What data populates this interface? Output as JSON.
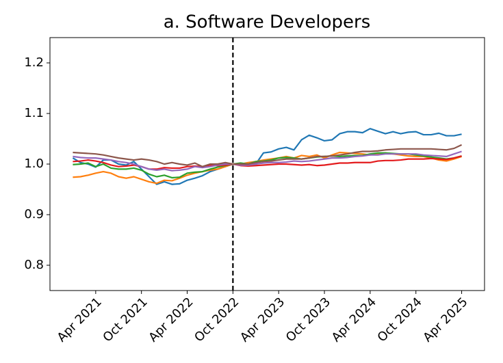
{
  "chart_data": {
    "type": "line",
    "title": "a. Software Developers",
    "x": [
      "2021-01",
      "2021-02",
      "2021-03",
      "2021-04",
      "2021-05",
      "2021-06",
      "2021-07",
      "2021-08",
      "2021-09",
      "2021-10",
      "2021-11",
      "2021-12",
      "2022-01",
      "2022-02",
      "2022-03",
      "2022-04",
      "2022-05",
      "2022-06",
      "2022-07",
      "2022-08",
      "2022-09",
      "2022-10",
      "2022-11",
      "2022-12",
      "2023-01",
      "2023-02",
      "2023-03",
      "2023-04",
      "2023-05",
      "2023-06",
      "2023-07",
      "2023-08",
      "2023-09",
      "2023-10",
      "2023-11",
      "2023-12",
      "2024-01",
      "2024-02",
      "2024-03",
      "2024-04",
      "2024-05",
      "2024-06",
      "2024-07",
      "2024-08",
      "2024-09",
      "2024-10",
      "2024-11",
      "2024-12",
      "2025-01",
      "2025-02",
      "2025-03",
      "2025-04"
    ],
    "series": [
      {
        "color": "#1f77b4",
        "values": [
          1.012,
          1.003,
          1.0,
          0.994,
          1.008,
          1.008,
          1.0,
          0.998,
          1.005,
          0.99,
          0.975,
          0.96,
          0.965,
          0.96,
          0.961,
          0.968,
          0.972,
          0.977,
          0.985,
          0.99,
          0.995,
          1.0,
          1.0,
          0.998,
          1.0,
          1.022,
          1.024,
          1.03,
          1.033,
          1.028,
          1.048,
          1.057,
          1.052,
          1.046,
          1.048,
          1.06,
          1.064,
          1.064,
          1.062,
          1.07,
          1.065,
          1.06,
          1.064,
          1.06,
          1.063,
          1.064,
          1.058,
          1.058,
          1.061,
          1.056,
          1.056,
          1.059
        ]
      },
      {
        "color": "#ff7f0e",
        "values": [
          0.974,
          0.975,
          0.978,
          0.982,
          0.985,
          0.982,
          0.975,
          0.972,
          0.975,
          0.97,
          0.965,
          0.962,
          0.968,
          0.967,
          0.972,
          0.978,
          0.982,
          0.985,
          0.988,
          0.99,
          0.995,
          1.0,
          1.0,
          1.003,
          1.005,
          1.008,
          1.01,
          1.012,
          1.015,
          1.012,
          1.017,
          1.015,
          1.018,
          1.012,
          1.018,
          1.023,
          1.022,
          1.021,
          1.02,
          1.018,
          1.02,
          1.022,
          1.02,
          1.018,
          1.016,
          1.015,
          1.015,
          1.012,
          1.008,
          1.006,
          1.01,
          1.015
        ]
      },
      {
        "color": "#2ca02c",
        "values": [
          0.999,
          1.0,
          1.002,
          0.995,
          1.0,
          0.992,
          0.99,
          0.99,
          0.992,
          0.988,
          0.98,
          0.975,
          0.978,
          0.973,
          0.974,
          0.982,
          0.984,
          0.985,
          0.99,
          0.994,
          0.997,
          1.0,
          1.002,
          1.0,
          1.005,
          1.006,
          1.008,
          1.012,
          1.013,
          1.012,
          1.01,
          1.012,
          1.014,
          1.015,
          1.016,
          1.015,
          1.016,
          1.017,
          1.017,
          1.02,
          1.022,
          1.022,
          1.021,
          1.02,
          1.02,
          1.018,
          1.016,
          1.014,
          1.012,
          1.01,
          1.012,
          1.016
        ]
      },
      {
        "color": "#e31a1c",
        "values": [
          1.005,
          1.006,
          1.008,
          1.006,
          1.003,
          0.998,
          0.995,
          0.996,
          0.998,
          0.995,
          0.99,
          0.99,
          0.993,
          0.992,
          0.992,
          0.995,
          0.996,
          0.995,
          0.998,
          0.997,
          0.998,
          1.0,
          0.997,
          0.996,
          0.997,
          0.998,
          0.999,
          1.0,
          1.0,
          0.999,
          0.998,
          0.999,
          0.997,
          0.998,
          1.0,
          1.002,
          1.002,
          1.003,
          1.003,
          1.003,
          1.006,
          1.007,
          1.007,
          1.008,
          1.01,
          1.01,
          1.01,
          1.011,
          1.01,
          1.009,
          1.012,
          1.016
        ]
      },
      {
        "color": "#9467bd",
        "values": [
          1.015,
          1.013,
          1.012,
          1.012,
          1.01,
          1.008,
          1.005,
          1.003,
          1.0,
          0.995,
          0.99,
          0.988,
          0.99,
          0.987,
          0.988,
          0.99,
          0.995,
          0.993,
          0.995,
          0.998,
          1.0,
          1.0,
          0.998,
          0.998,
          1.0,
          1.002,
          1.003,
          1.003,
          1.004,
          1.006,
          1.005,
          1.006,
          1.008,
          1.01,
          1.012,
          1.012,
          1.013,
          1.015,
          1.016,
          1.018,
          1.018,
          1.02,
          1.02,
          1.02,
          1.02,
          1.02,
          1.018,
          1.017,
          1.016,
          1.015,
          1.02,
          1.025
        ]
      },
      {
        "color": "#8c564b",
        "values": [
          1.023,
          1.022,
          1.021,
          1.02,
          1.018,
          1.015,
          1.012,
          1.01,
          1.008,
          1.01,
          1.008,
          1.005,
          1.0,
          1.003,
          1.0,
          0.998,
          1.002,
          0.995,
          1.0,
          1.0,
          1.003,
          1.0,
          1.0,
          1.0,
          1.003,
          1.005,
          1.006,
          1.008,
          1.01,
          1.01,
          1.01,
          1.012,
          1.015,
          1.015,
          1.016,
          1.018,
          1.02,
          1.023,
          1.025,
          1.025,
          1.026,
          1.028,
          1.029,
          1.03,
          1.03,
          1.03,
          1.03,
          1.03,
          1.029,
          1.028,
          1.031,
          1.038
        ]
      }
    ],
    "xlim": [
      "2020-10",
      "2025-07"
    ],
    "xticks": [
      {
        "value": "2021-04",
        "label": "Apr 2021"
      },
      {
        "value": "2021-10",
        "label": "Oct 2021"
      },
      {
        "value": "2022-04",
        "label": "Apr 2022"
      },
      {
        "value": "2022-10",
        "label": "Oct 2022"
      },
      {
        "value": "2023-04",
        "label": "Apr 2023"
      },
      {
        "value": "2023-10",
        "label": "Oct 2023"
      },
      {
        "value": "2024-04",
        "label": "Apr 2024"
      },
      {
        "value": "2024-10",
        "label": "Oct 2024"
      },
      {
        "value": "2025-04",
        "label": "Apr 2025"
      }
    ],
    "ylim": [
      0.75,
      1.25
    ],
    "yticks": [
      0.8,
      0.9,
      {
        "value": 1.0,
        "label": "1.0"
      },
      1.1,
      1.2
    ],
    "vline": "2022-10",
    "grid": false
  }
}
